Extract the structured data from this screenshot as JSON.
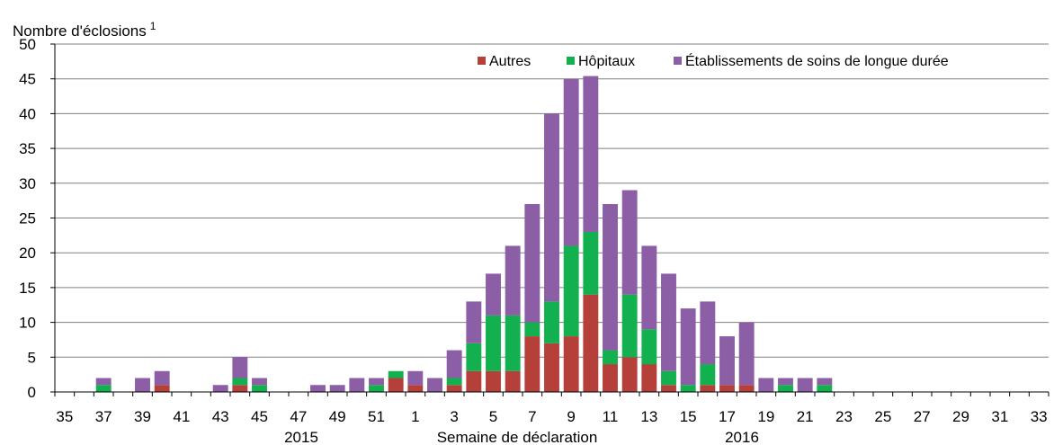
{
  "chart_data": {
    "type": "bar",
    "stacked": true,
    "ylabel": "Nombre d'éclosions",
    "ylabel_superscript": "1",
    "xlabel": "Semaine de déclaration",
    "year_labels": [
      "2015",
      "2016"
    ],
    "ylim": [
      0,
      50
    ],
    "yticks": [
      0,
      5,
      10,
      15,
      20,
      25,
      30,
      35,
      40,
      45,
      50
    ],
    "grid": true,
    "legend_position": "top-right",
    "categories": [
      "35",
      "36",
      "37",
      "38",
      "39",
      "40",
      "41",
      "42",
      "43",
      "44",
      "45",
      "46",
      "47",
      "48",
      "49",
      "50",
      "51",
      "52",
      "1",
      "2",
      "3",
      "4",
      "5",
      "6",
      "7",
      "8",
      "9",
      "10",
      "11",
      "12",
      "13",
      "14",
      "15",
      "16",
      "17",
      "18",
      "19",
      "20",
      "21",
      "22",
      "23",
      "24",
      "25",
      "26",
      "27",
      "28",
      "29",
      "30",
      "31",
      "32",
      "33"
    ],
    "tick_labels": [
      "35",
      "37",
      "39",
      "41",
      "43",
      "45",
      "47",
      "49",
      "51",
      "1",
      "3",
      "5",
      "7",
      "9",
      "11",
      "13",
      "15",
      "17",
      "19",
      "21",
      "23",
      "25",
      "27",
      "29",
      "31",
      "33"
    ],
    "series": [
      {
        "name": "Autres",
        "color": "#b5403a",
        "values": [
          0,
          0,
          0,
          0,
          0,
          1,
          0,
          0,
          0,
          1,
          0,
          0,
          0,
          0,
          0,
          0,
          0,
          2,
          1,
          0,
          1,
          3,
          3,
          3,
          8,
          7,
          8,
          14,
          4,
          5,
          4,
          1,
          0,
          1,
          1,
          1,
          0,
          0,
          0,
          0,
          0,
          0,
          0,
          0,
          0,
          0,
          0,
          0,
          0,
          0,
          0
        ]
      },
      {
        "name": "Hôpitaux",
        "color": "#12b04e",
        "values": [
          0,
          0,
          1,
          0,
          0,
          0,
          0,
          0,
          0,
          1,
          1,
          0,
          0,
          0,
          0,
          0,
          1,
          1,
          0,
          0,
          1,
          4,
          8,
          8,
          2,
          6,
          13,
          9,
          2,
          9,
          5,
          2,
          1,
          3,
          0,
          0,
          0,
          1,
          0,
          1,
          0,
          0,
          0,
          0,
          0,
          0,
          0,
          0,
          0,
          0,
          0
        ]
      },
      {
        "name": "Établissements de soins de longue durée",
        "color": "#8b5ea6",
        "values": [
          0,
          0,
          1,
          0,
          2,
          2,
          0,
          0,
          1,
          3,
          1,
          0,
          0,
          1,
          1,
          2,
          1,
          0,
          2,
          2,
          4,
          6,
          6,
          10,
          17,
          27,
          24,
          22.4,
          21,
          15,
          12,
          14,
          11,
          9,
          7,
          9,
          2,
          1,
          2,
          1,
          0,
          0,
          0,
          0,
          0,
          0,
          0,
          0,
          0,
          0,
          0
        ]
      }
    ]
  }
}
